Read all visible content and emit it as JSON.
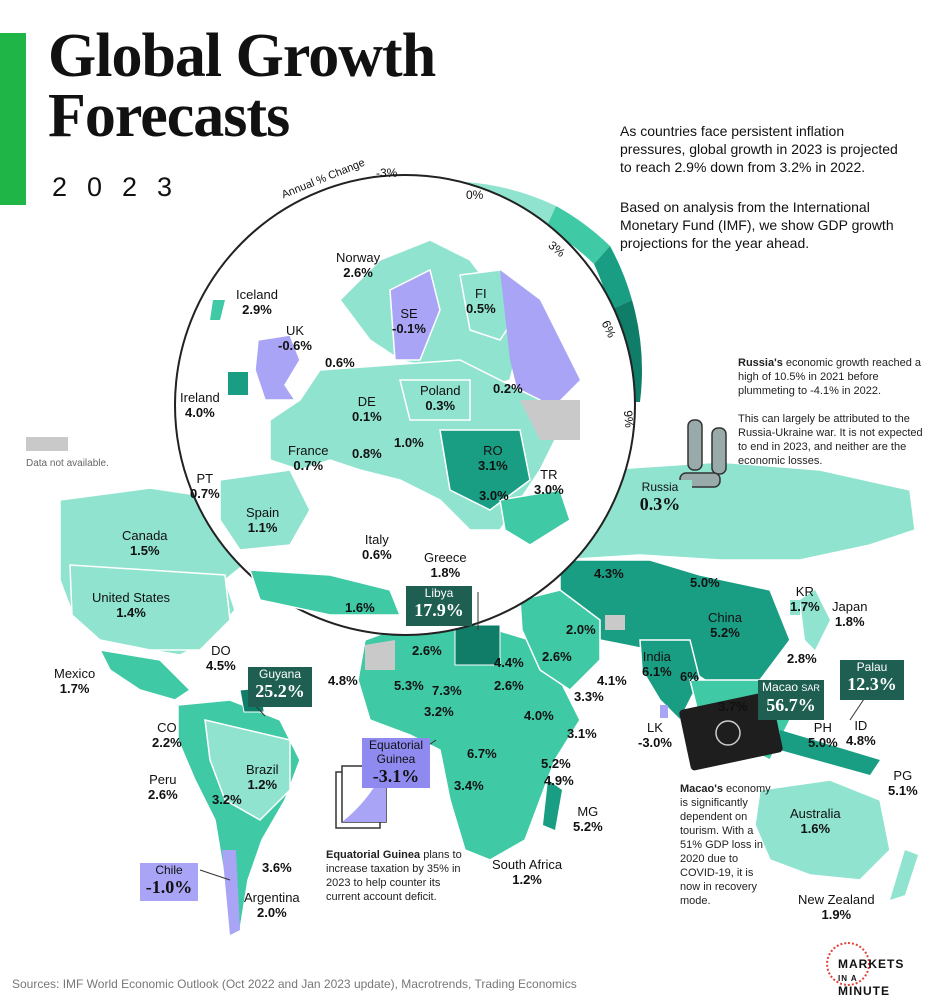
{
  "title_line1": "Global Growth",
  "title_line2": "Forecasts",
  "year": "2023",
  "intro_1": "As countries face persistent inflation pressures, global growth in 2023 is projected to reach 2.9% down from 3.2% in 2022.",
  "intro_2": "Based on analysis from the International Monetary Fund (IMF), we show GDP growth projections for the year ahead.",
  "scale": {
    "title": "Annual % Change",
    "ticks": [
      "-3%",
      "0%",
      "3%",
      "6%",
      "9%"
    ],
    "colors": [
      "#a9a4f5",
      "#8fe3cf",
      "#3fc9a5",
      "#1a9e83",
      "#0f7d68"
    ]
  },
  "data_not_available": "Data not available.",
  "colors": {
    "na": "#c9c9c9",
    "neg": "#a9a4f5",
    "low": "#8fe3cf",
    "mid": "#3fc9a5",
    "high": "#1a9e83",
    "vhigh": "#0f7d68",
    "callout": "#1f5f52",
    "callout_neg": "#8f8af0",
    "accent": "#1fb547"
  },
  "europe": [
    {
      "name": "Norway",
      "value": "2.6%"
    },
    {
      "name": "Iceland",
      "value": "2.9%"
    },
    {
      "name": "SE",
      "value": "-0.1%"
    },
    {
      "name": "FI",
      "value": "0.5%"
    },
    {
      "name": "UK",
      "value": "-0.6%"
    },
    {
      "name": "",
      "value": "0.6%"
    },
    {
      "name": "Ireland",
      "value": "4.0%"
    },
    {
      "name": "DE",
      "value": "0.1%"
    },
    {
      "name": "Poland",
      "value": "0.3%"
    },
    {
      "name": "",
      "value": "0.2%"
    },
    {
      "name": "France",
      "value": "0.7%"
    },
    {
      "name": "",
      "value": "1.0%"
    },
    {
      "name": "",
      "value": "0.8%"
    },
    {
      "name": "RO",
      "value": "3.1%"
    },
    {
      "name": "PT",
      "value": "0.7%"
    },
    {
      "name": "Spain",
      "value": "1.1%"
    },
    {
      "name": "",
      "value": "3.0%"
    },
    {
      "name": "TR",
      "value": "3.0%"
    },
    {
      "name": "Italy",
      "value": "0.6%"
    },
    {
      "name": "Greece",
      "value": "1.8%"
    },
    {
      "name": "",
      "value": "1.6%"
    }
  ],
  "world": [
    {
      "name": "Canada",
      "value": "1.5%"
    },
    {
      "name": "United States",
      "value": "1.4%"
    },
    {
      "name": "Mexico",
      "value": "1.7%"
    },
    {
      "name": "DO",
      "value": "4.5%"
    },
    {
      "name": "CO",
      "value": "2.2%"
    },
    {
      "name": "Peru",
      "value": "2.6%"
    },
    {
      "name": "Brazil",
      "value": "1.2%"
    },
    {
      "name": "",
      "value": "3.2%"
    },
    {
      "name": "",
      "value": "3.6%"
    },
    {
      "name": "Argentina",
      "value": "2.0%"
    },
    {
      "name": "",
      "value": "4.8%"
    },
    {
      "name": "",
      "value": "2.6%"
    },
    {
      "name": "",
      "value": "5.3%"
    },
    {
      "name": "",
      "value": "7.3%"
    },
    {
      "name": "",
      "value": "3.2%"
    },
    {
      "name": "",
      "value": "4.4%"
    },
    {
      "name": "",
      "value": "2.6%"
    },
    {
      "name": "",
      "value": "4.0%"
    },
    {
      "name": "",
      "value": "3.3%"
    },
    {
      "name": "",
      "value": "3.1%"
    },
    {
      "name": "",
      "value": "6.7%"
    },
    {
      "name": "",
      "value": "5.2%"
    },
    {
      "name": "",
      "value": "4.9%"
    },
    {
      "name": "",
      "value": "3.4%"
    },
    {
      "name": "MG",
      "value": "5.2%"
    },
    {
      "name": "South Africa",
      "value": "1.2%"
    },
    {
      "name": "",
      "value": "2.0%"
    },
    {
      "name": "",
      "value": "2.6%"
    },
    {
      "name": "",
      "value": "4.1%"
    },
    {
      "name": "",
      "value": "4.3%"
    },
    {
      "name": "",
      "value": "5.0%"
    },
    {
      "name": "China",
      "value": "5.2%"
    },
    {
      "name": "India",
      "value": "6.1%"
    },
    {
      "name": "",
      "value": "6%"
    },
    {
      "name": "",
      "value": "3.7%"
    },
    {
      "name": "",
      "value": "2.8%"
    },
    {
      "name": "KR",
      "value": "1.7%"
    },
    {
      "name": "Japan",
      "value": "1.8%"
    },
    {
      "name": "LK",
      "value": "-3.0%"
    },
    {
      "name": "PH",
      "value": "5.0%"
    },
    {
      "name": "ID",
      "value": "4.8%"
    },
    {
      "name": "PG",
      "value": "5.1%"
    },
    {
      "name": "Australia",
      "value": "1.6%"
    },
    {
      "name": "New Zealand",
      "value": "1.9%"
    }
  ],
  "callouts": {
    "libya": {
      "name": "Libya",
      "value": "17.9%"
    },
    "guyana": {
      "name": "Guyana",
      "value": "25.2%"
    },
    "eq_guinea": {
      "name": "Equatorial Guinea",
      "value": "-3.1%"
    },
    "chile": {
      "name": "Chile",
      "value": "-1.0%"
    },
    "russia": {
      "name": "Russia",
      "value": "0.3%"
    },
    "macao": {
      "name": "Macao",
      "sar": "SAR",
      "value": "56.7%"
    },
    "palau": {
      "name": "Palau",
      "value": "12.3%"
    }
  },
  "notes": {
    "russia_bold": "Russia's",
    "russia_1": " economic growth reached a high of 10.5% in 2021 before plummeting to -4.1% in 2022.",
    "russia_2": "This can largely be attributed to the Russia-Ukraine war. It is not expected to end in 2023, and neither are the economic losses.",
    "eg_bold": "Equatorial Guinea",
    "eg_rest": " plans to increase taxation by 35% in 2023 to help counter its current account deficit.",
    "macao_bold": "Macao's",
    "macao_rest": " economy is significantly dependent on tourism. With a 51% GDP loss in 2020 due to COVID-19, it is now in recovery mode."
  },
  "sources": "Sources: IMF World Economic Outlook (Oct 2022 and Jan 2023 update), Macrotrends, Trading Economics",
  "brand": [
    "MARKETS",
    "IN A",
    "MINUTE"
  ]
}
